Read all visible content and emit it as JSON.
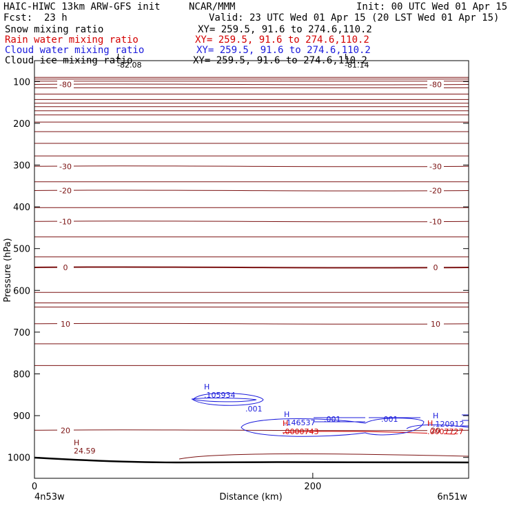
{
  "header": {
    "title_left": "HAIC-HIWC 13km ARW-GFS init",
    "org": "NCAR/MMM",
    "init": "Init: 00 UTC Wed 01 Apr 15",
    "fcst_label": "Fcst:",
    "fcst_value": "23 h",
    "valid": "Valid: 23 UTC Wed 01 Apr 15 (20 LST Wed 01 Apr 15)",
    "fields": [
      {
        "name": "Snow mixing ratio",
        "xy": "XY= 259.5, 91.6 to 274.6,110.2",
        "color": "#000000"
      },
      {
        "name": "Rain water mixing ratio",
        "xy": "XY= 259.5, 91.6 to 274.6,110.2",
        "color": "#d40000"
      },
      {
        "name": "Cloud water mixing ratio",
        "xy": "XY= 259.5, 91.6 to 274.6,110.2",
        "color": "#1a1adb"
      },
      {
        "name": "Cloud ice mixing ratio",
        "xy": "XY= 259.5, 91.6 to 274.6,110.2",
        "color": "#000000"
      }
    ]
  },
  "chart_data": {
    "type": "line",
    "xlabel": "Distance (km)",
    "ylabel": "Pressure (hPa)",
    "x_ticks": [
      0,
      200
    ],
    "y_ticks": [
      100,
      200,
      300,
      400,
      500,
      600,
      700,
      800,
      900,
      1000
    ],
    "xlim": [
      0,
      312
    ],
    "ylim": [
      1050,
      50
    ],
    "x_end_labels": {
      "left": "4n53w",
      "right": "6n51w"
    },
    "temperature_contours": [
      {
        "label": "-80",
        "pressure": 107
      },
      {
        "label": "-30",
        "pressure": 303
      },
      {
        "label": "-20",
        "pressure": 361
      },
      {
        "label": "-10",
        "pressure": 435
      },
      {
        "label": "0",
        "pressure": 545
      },
      {
        "label": "10",
        "pressure": 680
      },
      {
        "label": "20",
        "pressure": 935
      }
    ],
    "extrema": [
      {
        "type": "L",
        "value": "-82.08",
        "series": "temperature"
      },
      {
        "type": "L",
        "value": "-81.14",
        "series": "temperature"
      },
      {
        "type": "H",
        "value": "24.59",
        "series": "temperature"
      },
      {
        "type": "H",
        "value": ".105934",
        "series": "Cloud water mixing ratio"
      },
      {
        "type": "H",
        "value": ".146537",
        "series": "Cloud water mixing ratio"
      },
      {
        "type": "H",
        "value": ".120912",
        "series": "Cloud water mixing ratio"
      },
      {
        "type": "H",
        "value": ".0000743",
        "series": "Rain water mixing ratio"
      },
      {
        "type": "H",
        "value": ".0007727",
        "series": "Rain water mixing ratio"
      }
    ],
    "cloud_water_contour_labels": [
      ".001",
      ".001",
      ".001"
    ],
    "grid": false
  }
}
